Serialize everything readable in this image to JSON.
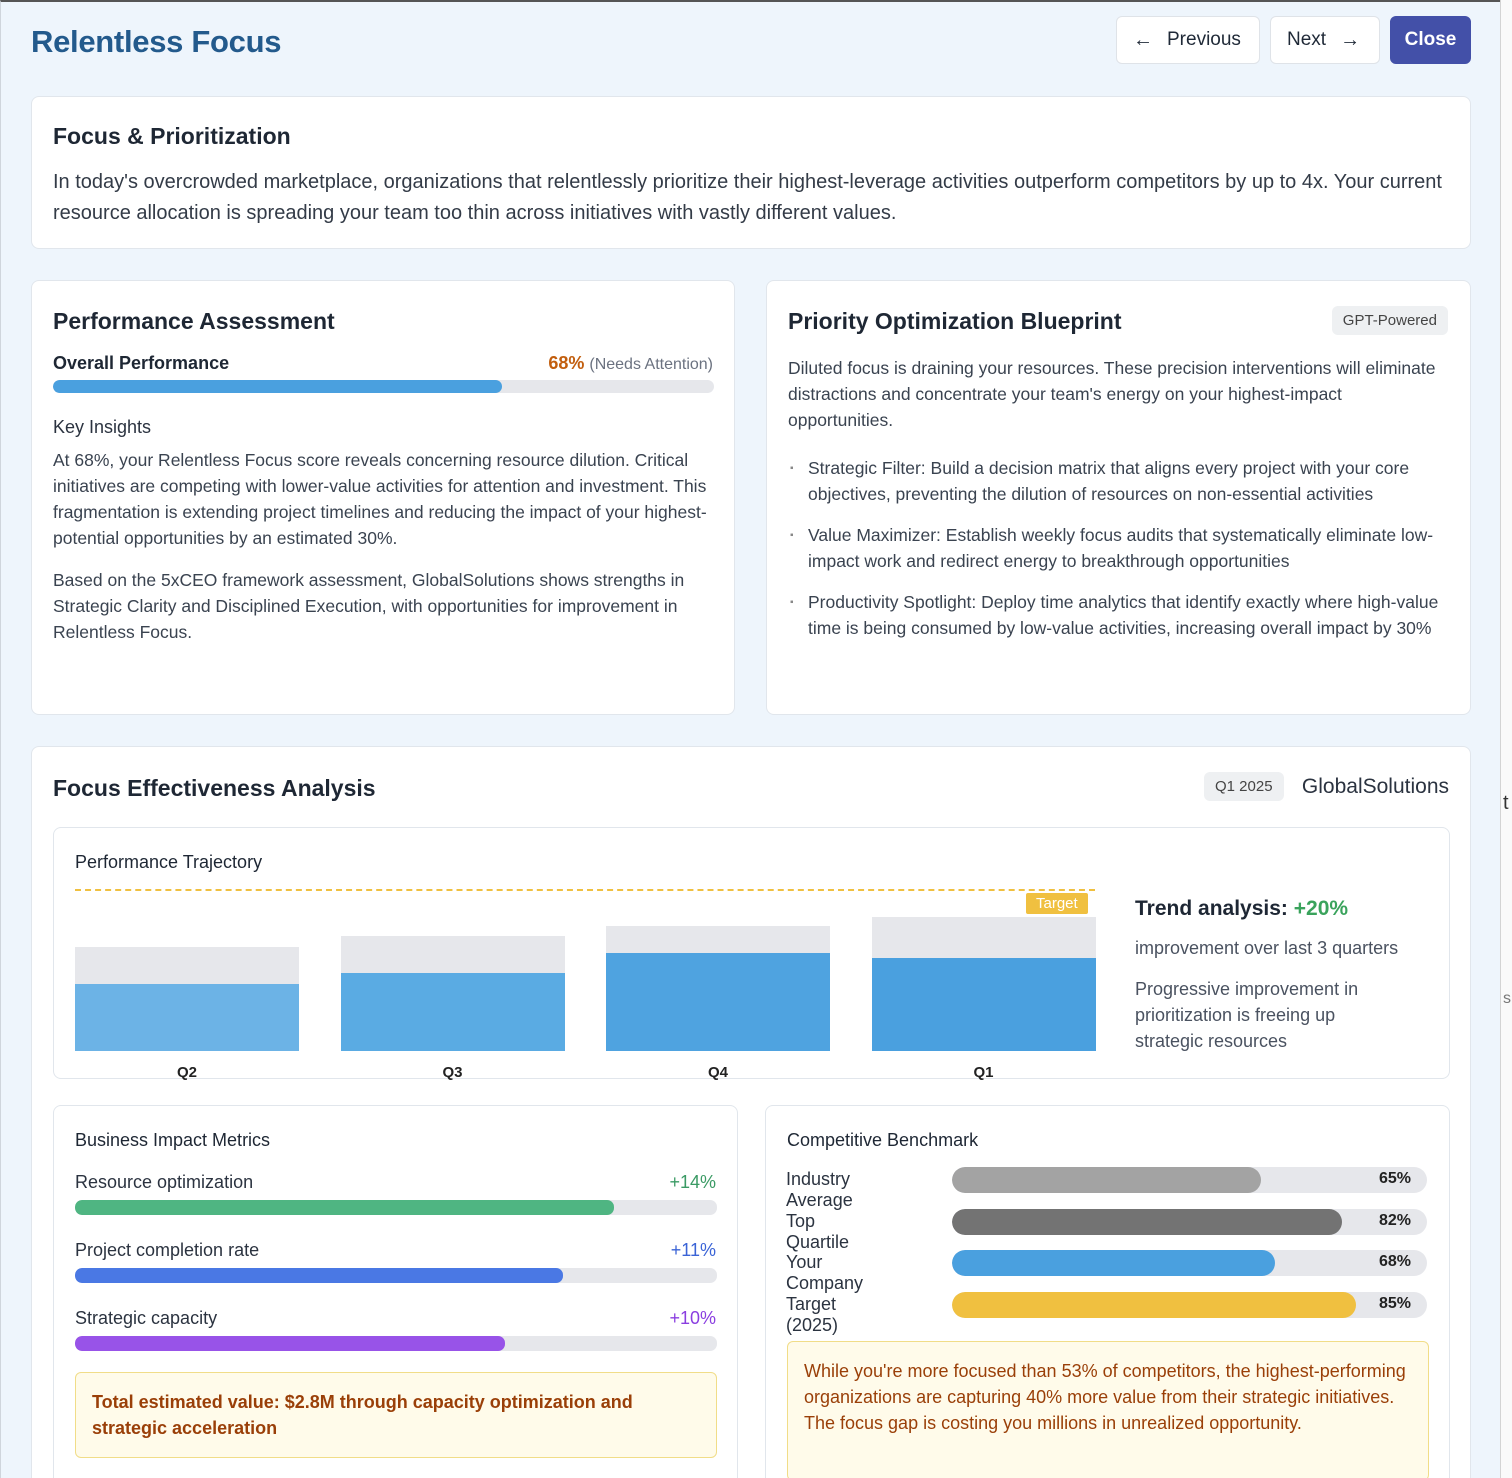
{
  "modal": {
    "title": "Relentless Focus",
    "previous_label": "Previous",
    "next_label": "Next",
    "close_label": "Close",
    "icons": {
      "previous": "arrow-left-icon",
      "next": "arrow-right-icon"
    }
  },
  "intro": {
    "heading": "Focus & Prioritization",
    "body": "In today's overcrowded marketplace, organizations that relentlessly prioritize their highest-leverage activities outperform competitors by up to 4x. Your current resource allocation is spreading your team too thin across initiatives with vastly different values."
  },
  "assessment": {
    "heading": "Performance Assessment",
    "overall_label": "Overall Performance",
    "overall_value": "68%",
    "overall_fraction": 0.68,
    "overall_status": "(Needs Attention)",
    "insights_heading": "Key Insights",
    "insight_1": "At 68%, your Relentless Focus score reveals concerning resource dilution. Critical initiatives are competing with lower-value activities for attention and investment. This fragmentation is extending project timelines and reducing the impact of your highest-potential opportunities by an estimated 30%.",
    "insight_2": "Based on the 5xCEO framework assessment, GlobalSolutions shows strengths in Strategic Clarity and Disciplined Execution, with opportunities for improvement in Relentless Focus."
  },
  "blueprint": {
    "heading": "Priority Optimization Blueprint",
    "badge": "GPT-Powered",
    "intro": "Diluted focus is draining your resources. These precision interventions will eliminate distractions and concentrate your team's energy on your highest-impact opportunities.",
    "items": [
      "Strategic Filter: Build a decision matrix that aligns every project with your core objectives, preventing the dilution of resources on non-essential activities",
      "Value Maximizer: Establish weekly focus audits that systematically eliminate low-impact work and redirect energy to breakthrough opportunities",
      "Productivity Spotlight: Deploy time analytics that identify exactly where high-value time is being consumed by low-value activities, increasing overall impact by 30%"
    ]
  },
  "analysis": {
    "heading": "Focus Effectiveness Analysis",
    "period_badge": "Q1 2025",
    "company": "GlobalSolutions",
    "trajectory_heading": "Performance Trajectory",
    "target_label": "Target",
    "trend_label": "Trend analysis:",
    "trend_value": "+20%",
    "trend_sub": "improvement over last 3 quarters",
    "trend_note": "Progressive improvement in prioritization is freeing up strategic resources"
  },
  "chart_data": {
    "type": "bar",
    "categories": [
      "Q2",
      "Q3",
      "Q4",
      "Q1"
    ],
    "series": [
      {
        "values": [
          0.65,
          0.72,
          0.78,
          0.84
        ]
      },
      {
        "values": [
          0.42,
          0.49,
          0.61,
          0.58
        ]
      }
    ],
    "target": 1.0,
    "colors": [
      "#e6e7eb",
      "#6cb3e6",
      "#5aabe3",
      "#4fa3e0",
      "#4aa0df"
    ],
    "target_color": "#f0c040"
  },
  "impact": {
    "heading": "Business Impact Metrics",
    "metrics": [
      {
        "label": "Resource optimization",
        "value": "+14%",
        "fraction": 0.84,
        "color": "#4fb582"
      },
      {
        "label": "Project completion rate",
        "value": "+11%",
        "fraction": 0.76,
        "color": "#4a78e4"
      },
      {
        "label": "Strategic capacity",
        "value": "+10%",
        "fraction": 0.67,
        "color": "#9853e8"
      }
    ],
    "value_colors": [
      "#3a9a64",
      "#3a63d6",
      "#8a3ee0"
    ],
    "callout": "Total estimated value: $2.8M through capacity optimization and strategic acceleration"
  },
  "benchmark": {
    "heading": "Competitive Benchmark",
    "rows": [
      {
        "label": "Industry Average",
        "value": "65%",
        "fraction": 0.65,
        "color": "#a3a3a3"
      },
      {
        "label": "Top Quartile",
        "value": "82%",
        "fraction": 0.82,
        "color": "#737373"
      },
      {
        "label": "Your Company",
        "value": "68%",
        "fraction": 0.68,
        "color": "#4aa0df"
      },
      {
        "label": "Target (2025)",
        "value": "85%",
        "fraction": 0.85,
        "color": "#f0c040"
      }
    ],
    "callout": "While you're more focused than 53% of competitors, the highest-performing organizations are capturing 40% more value from their strategic initiatives. The focus gap is costing you millions in unrealized opportunity."
  },
  "edge": {
    "char_1": "t",
    "char_2": "s"
  }
}
